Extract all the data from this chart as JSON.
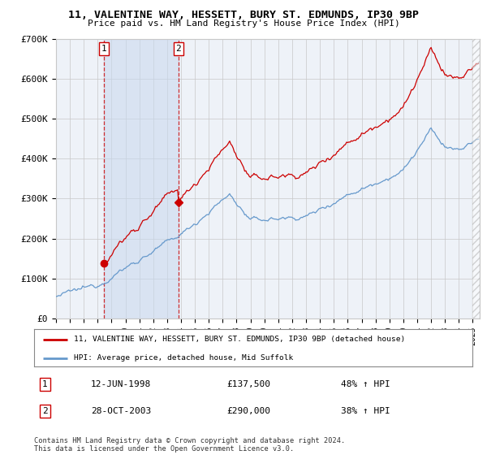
{
  "title": "11, VALENTINE WAY, HESSETT, BURY ST. EDMUNDS, IP30 9BP",
  "subtitle": "Price paid vs. HM Land Registry's House Price Index (HPI)",
  "legend_property": "11, VALENTINE WAY, HESSETT, BURY ST. EDMUNDS, IP30 9BP (detached house)",
  "legend_hpi": "HPI: Average price, detached house, Mid Suffolk",
  "purchase1_date": "12-JUN-1998",
  "purchase1_price": 137500,
  "purchase1_pct": "48% ↑ HPI",
  "purchase2_date": "28-OCT-2003",
  "purchase2_price": 290000,
  "purchase2_pct": "38% ↑ HPI",
  "footer": "Contains HM Land Registry data © Crown copyright and database right 2024.\nThis data is licensed under the Open Government Licence v3.0.",
  "ylim": [
    0,
    700000
  ],
  "yticks": [
    0,
    100000,
    200000,
    300000,
    400000,
    500000,
    600000,
    700000
  ],
  "ytick_labels": [
    "£0",
    "£100K",
    "£200K",
    "£300K",
    "£400K",
    "£500K",
    "£600K",
    "£700K"
  ],
  "purchase1_year": 1998.45,
  "purchase2_year": 2003.82,
  "property_color": "#cc0000",
  "hpi_color": "#6699cc",
  "background_color": "#eef2f8",
  "grid_color": "#c8c8c8",
  "purchase_marker_color": "#cc0000"
}
